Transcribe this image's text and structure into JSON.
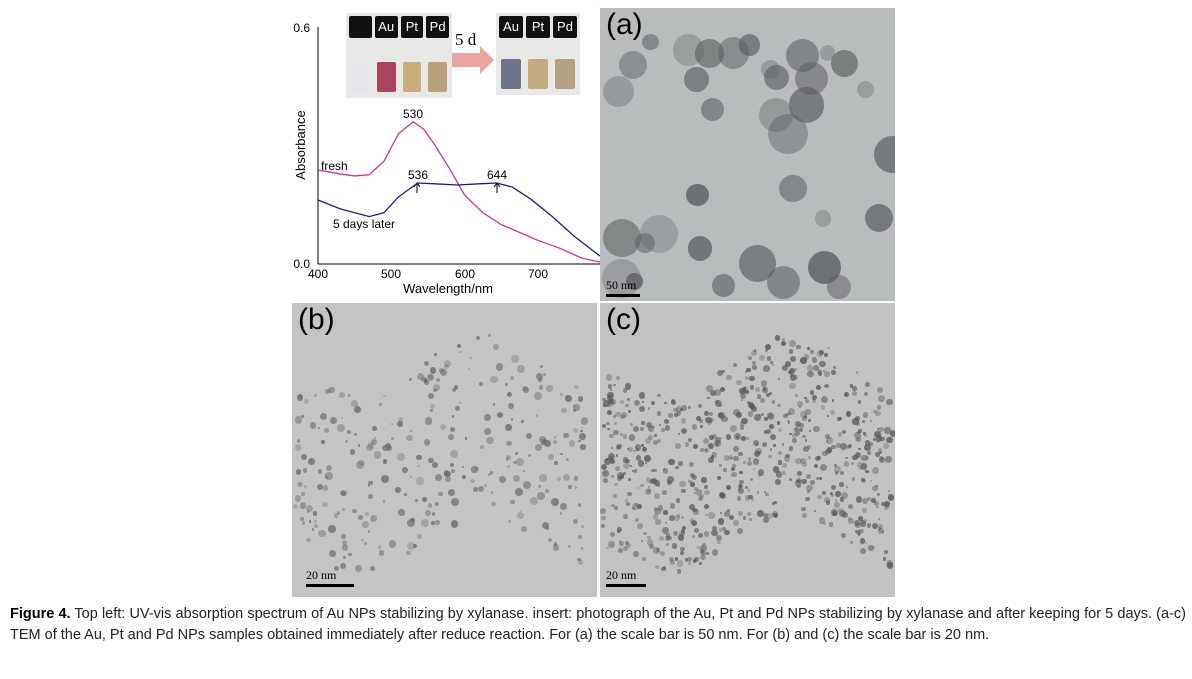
{
  "chart_data": {
    "type": "line",
    "xlabel": "Wavelength/nm",
    "ylabel": "Absorbance",
    "xlim": [
      400,
      785
    ],
    "ylim": [
      0,
      0.6
    ],
    "xticks": [
      "400",
      "500",
      "600",
      "700"
    ],
    "yticks": [
      "0.0",
      "0.6"
    ],
    "series": [
      {
        "name": "fresh",
        "color": "#cc3399",
        "x": [
          400,
          430,
          450,
          470,
          490,
          510,
          530,
          545,
          560,
          580,
          600,
          625,
          650,
          675,
          700,
          730,
          760,
          785
        ],
        "y": [
          0.238,
          0.228,
          0.223,
          0.226,
          0.26,
          0.33,
          0.36,
          0.34,
          0.3,
          0.24,
          0.175,
          0.13,
          0.1,
          0.08,
          0.06,
          0.04,
          0.015,
          0.005
        ]
      },
      {
        "name": "5 days later",
        "color": "#1e1e7a",
        "x": [
          400,
          430,
          470,
          490,
          510,
          536,
          560,
          590,
          620,
          644,
          665,
          690,
          720,
          750,
          785
        ],
        "y": [
          0.162,
          0.14,
          0.12,
          0.13,
          0.17,
          0.205,
          0.203,
          0.2,
          0.203,
          0.205,
          0.195,
          0.165,
          0.12,
          0.07,
          0.02
        ]
      }
    ],
    "annotations": [
      "530",
      "536",
      "644"
    ],
    "grid": false
  },
  "inset": {
    "before": [
      "",
      "Au",
      "Pt",
      "Pd"
    ],
    "after": [
      "Au",
      "Pt",
      "Pd"
    ],
    "arrow_label": "5 d"
  },
  "panels": {
    "a": {
      "label": "(a)",
      "scale": "50 nm"
    },
    "b": {
      "label": "(b)",
      "scale": "20 nm"
    },
    "c": {
      "label": "(c)",
      "scale": "20 nm"
    }
  },
  "caption": {
    "lead": "Figure 4.",
    "text": " Top left: UV-vis absorption spectrum of Au NPs stabilizing by xylanase. insert: photograph of the Au, Pt and Pd NPs stabilizing by xylanase and after keeping for 5 days. (a-c) TEM of the Au, Pt and Pd NPs samples obtained immediately after reduce reaction. For (a) the scale bar is 50 nm. For (b) and (c) the scale bar is 20 nm."
  }
}
